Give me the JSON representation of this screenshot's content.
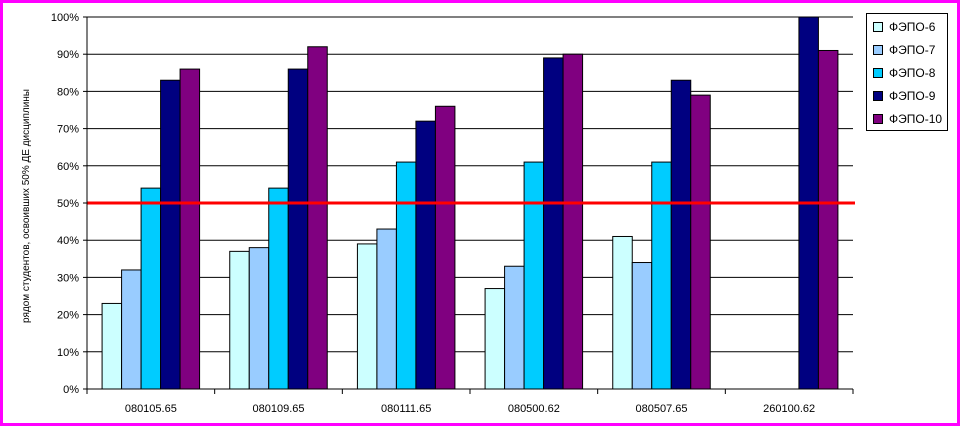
{
  "chart_data": {
    "type": "bar",
    "title": "",
    "xlabel": "",
    "ylabel": "рядом студентов, освоивших 50% ДЕ дисциплины",
    "ylim": [
      0,
      100
    ],
    "yticks": [
      "0%",
      "10%",
      "20%",
      "30%",
      "40%",
      "50%",
      "60%",
      "70%",
      "80%",
      "90%",
      "100%"
    ],
    "categories": [
      "080105.65",
      "080109.65",
      "080111.65",
      "080500.62",
      "080507.65",
      "260100.62"
    ],
    "series": [
      {
        "name": "ФЭПО-6",
        "color": "#ccffff",
        "values": [
          23,
          37,
          39,
          27,
          41,
          null
        ]
      },
      {
        "name": "ФЭПО-7",
        "color": "#99ccff",
        "values": [
          32,
          38,
          43,
          33,
          34,
          null
        ]
      },
      {
        "name": "ФЭПО-8",
        "color": "#00ccff",
        "values": [
          54,
          54,
          61,
          61,
          61,
          null
        ]
      },
      {
        "name": "ФЭПО-9",
        "color": "#000080",
        "values": [
          83,
          86,
          72,
          89,
          83,
          100
        ]
      },
      {
        "name": "ФЭПО-10",
        "color": "#800080",
        "values": [
          86,
          92,
          76,
          90,
          79,
          91
        ]
      }
    ],
    "threshold": {
      "value": 50,
      "color": "#ff0000"
    },
    "grid": true,
    "legend": "right"
  }
}
